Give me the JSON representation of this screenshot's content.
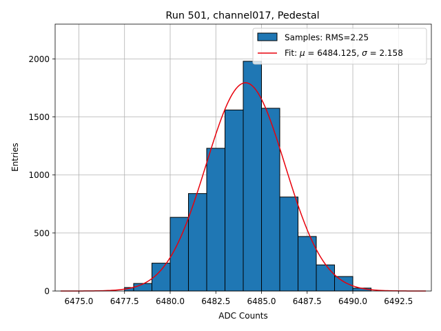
{
  "chart_data": {
    "type": "bar",
    "title": "Run 501, channel017, Pedestal",
    "xlabel": "ADC Counts",
    "ylabel": "Entries",
    "xlim": [
      6473.7,
      6494.3
    ],
    "ylim": [
      0,
      2300
    ],
    "xticks": [
      6475.0,
      6477.5,
      6480.0,
      6482.5,
      6485.0,
      6487.5,
      6490.0,
      6492.5
    ],
    "xtick_labels": [
      "6475.0",
      "6477.5",
      "6480.0",
      "6482.5",
      "6485.0",
      "6487.5",
      "6490.0",
      "6492.5"
    ],
    "yticks": [
      0,
      500,
      1000,
      1500,
      2000
    ],
    "ytick_labels": [
      "0",
      "500",
      "1000",
      "1500",
      "2000"
    ],
    "grid": true,
    "legend_position": "top-right",
    "histogram": {
      "name": "Samples: RMS=2.25",
      "color": "#1f77b4",
      "edge_color": "#000000",
      "bin_edges": [
        6476.0,
        6477.5,
        6478.0,
        6479.0,
        6480.0,
        6481.0,
        6482.0,
        6483.0,
        6484.0,
        6485.0,
        6486.0,
        6487.0,
        6488.0,
        6489.0,
        6490.0,
        6491.0
      ],
      "values": [
        0,
        30,
        65,
        240,
        635,
        840,
        1230,
        1560,
        1980,
        1575,
        810,
        470,
        225,
        125,
        25
      ]
    },
    "fit": {
      "name": "Fit: μ = 6484.125, σ = 2.158",
      "label_prefix": "Fit: ",
      "mu_symbol": "μ",
      "mu_value": "6484.125",
      "sigma_symbol": "σ",
      "sigma_value": "2.158",
      "mu": 6484.125,
      "sigma": 2.158,
      "amplitude": 1795,
      "x_range": [
        6474.0,
        6494.0
      ],
      "color": "#e8000b"
    }
  }
}
